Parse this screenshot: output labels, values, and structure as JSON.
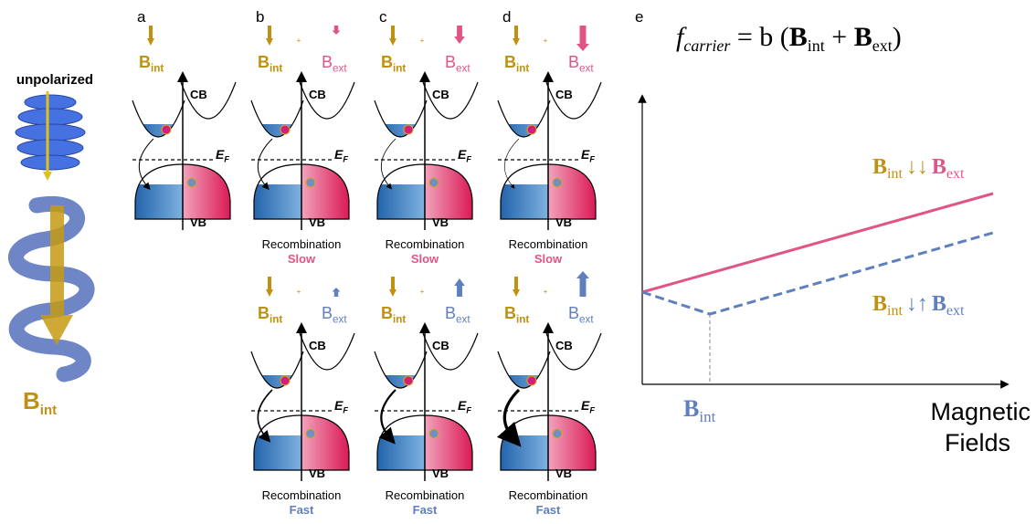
{
  "left": {
    "unpolarized": "unpolarized",
    "field": {
      "main": "B",
      "sub": "int"
    }
  },
  "panels": [
    {
      "label": "a",
      "top": {
        "int": {
          "main": "B",
          "sub": "int"
        },
        "cb": "CB",
        "ef": {
          "main": "E",
          "sub": "F"
        },
        "vb": "VB"
      }
    },
    {
      "label": "b",
      "top": {
        "int": {
          "main": "B",
          "sub": "int"
        },
        "plus": "+",
        "ext": {
          "main": "B",
          "sub": "ext"
        },
        "cb": "CB",
        "ef": {
          "main": "E",
          "sub": "F"
        },
        "vb": "VB",
        "process": "Recombination",
        "rate": "Slow"
      },
      "bottom": {
        "int": {
          "main": "B",
          "sub": "int"
        },
        "plus": "+",
        "ext": {
          "main": "B",
          "sub": "ext"
        },
        "cb": "CB",
        "ef": {
          "main": "E",
          "sub": "F"
        },
        "vb": "VB",
        "process": "Recombination",
        "rate": "Fast"
      }
    },
    {
      "label": "c",
      "top": {
        "int": {
          "main": "B",
          "sub": "int"
        },
        "plus": "+",
        "ext": {
          "main": "B",
          "sub": "ext"
        },
        "cb": "CB",
        "ef": {
          "main": "E",
          "sub": "F"
        },
        "vb": "VB",
        "process": "Recombination",
        "rate": "Slow"
      },
      "bottom": {
        "int": {
          "main": "B",
          "sub": "int"
        },
        "plus": "+",
        "ext": {
          "main": "B",
          "sub": "ext"
        },
        "cb": "CB",
        "ef": {
          "main": "E",
          "sub": "F"
        },
        "vb": "VB",
        "process": "Recombination",
        "rate": "Fast"
      }
    },
    {
      "label": "d",
      "top": {
        "int": {
          "main": "B",
          "sub": "int"
        },
        "plus": "+",
        "ext": {
          "main": "B",
          "sub": "ext"
        },
        "cb": "CB",
        "ef": {
          "main": "E",
          "sub": "F"
        },
        "vb": "VB",
        "process": "Recombination",
        "rate": "Slow"
      },
      "bottom": {
        "int": {
          "main": "B",
          "sub": "int"
        },
        "plus": "+",
        "ext": {
          "main": "B",
          "sub": "ext"
        },
        "cb": "CB",
        "ef": {
          "main": "E",
          "sub": "F"
        },
        "vb": "VB",
        "process": "Recombination",
        "rate": "Fast"
      }
    }
  ],
  "plot": {
    "label": "e",
    "formula": {
      "f": "f",
      "carrier": "carrier",
      "eq": " = b (",
      "b1": "B",
      "s1": "int",
      "plus": " + ",
      "b2": "B",
      "s2": "ext",
      "close": ")"
    },
    "parallel": {
      "b1": "B",
      "s1": "int",
      "arrows": "↓↓",
      "b2": "B",
      "s2": "ext"
    },
    "antiparallel": {
      "b1": "B",
      "s1": "int",
      "arrows": "↓↑",
      "b2": "B",
      "s2": "ext"
    },
    "x_marker": {
      "main": "B",
      "sub": "int"
    },
    "x_title": [
      "Magnetic",
      "Fields"
    ]
  }
}
